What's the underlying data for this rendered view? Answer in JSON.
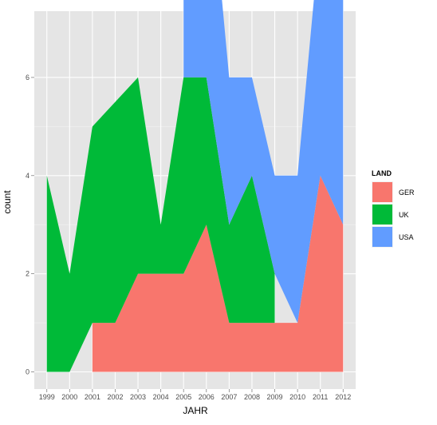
{
  "chart_data": {
    "type": "area",
    "x": [
      1999,
      2000,
      2001,
      2002,
      2003,
      2004,
      2005,
      2006,
      2007,
      2008,
      2009,
      2010,
      2011,
      2012
    ],
    "xlabel": "JAHR",
    "ylabel": "count",
    "ylim": [
      0,
      7
    ],
    "yticks": [
      0,
      2,
      4,
      6
    ],
    "grid": true,
    "legend": {
      "title": "LAND",
      "placement": "right"
    },
    "series": [
      {
        "name": "GER",
        "color": "#f8766d",
        "values": [
          null,
          null,
          1,
          1,
          2,
          2,
          2,
          3,
          1,
          1,
          1,
          1,
          4,
          3
        ]
      },
      {
        "name": "UK",
        "color": "#00ba38",
        "values": [
          4,
          2,
          4,
          4.5,
          4,
          1,
          4,
          3,
          2,
          3,
          1,
          null,
          null,
          null
        ]
      },
      {
        "name": "USA",
        "color": "#619cff",
        "values": [
          null,
          null,
          null,
          null,
          null,
          null,
          7,
          5,
          3,
          2,
          2,
          3,
          5,
          5
        ]
      }
    ]
  }
}
